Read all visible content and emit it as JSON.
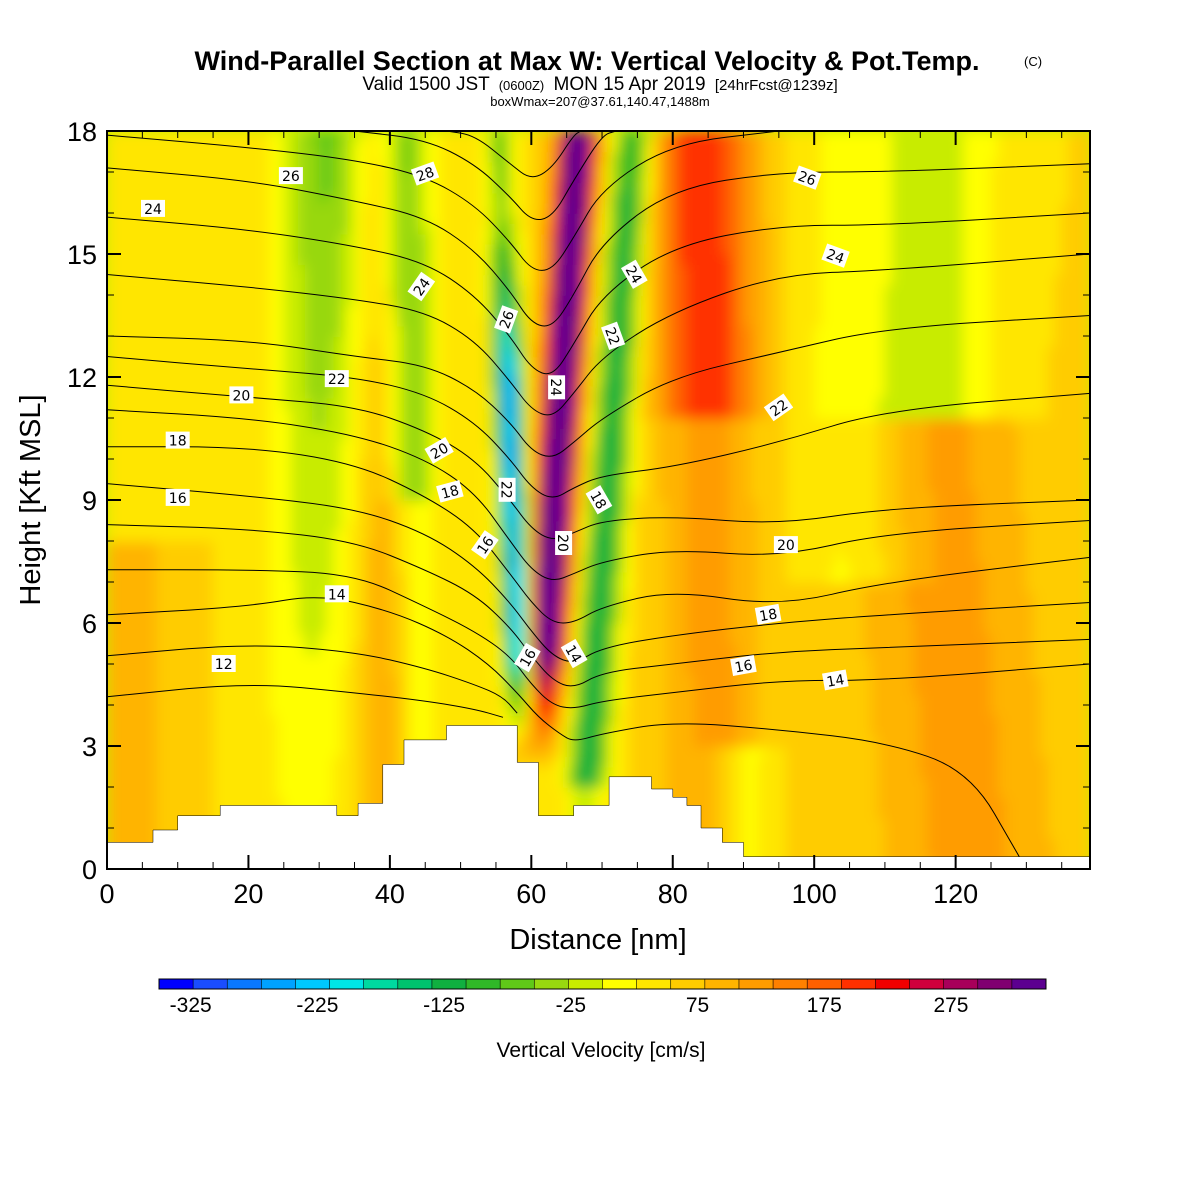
{
  "chart_data": {
    "type": "heatmap",
    "title": "Wind-Parallel Section at Max W: Vertical Velocity & Pot.Temp.",
    "title_mark": "(C)",
    "subtitle_a": "Valid 1500 JST",
    "subtitle_b": "(0600Z)",
    "subtitle_c": "MON 15 Apr 2019",
    "subtitle_d": "[24hrFcst@1239z]",
    "subtitle2": "boxWmax=207@37.61,140.47,1488m",
    "xlabel": "Distance [nm]",
    "ylabel": "Height [Kft MSL]",
    "xlim": [
      0,
      139
    ],
    "ylim": [
      0,
      18
    ],
    "x_ticks": [
      0,
      20,
      40,
      60,
      80,
      100,
      120
    ],
    "x_tick_labels": [
      "0",
      "20",
      "40",
      "60",
      "80",
      "100",
      "120"
    ],
    "y_ticks": [
      0,
      3,
      6,
      9,
      12,
      15,
      18
    ],
    "y_tick_labels": [
      "0",
      "3",
      "6",
      "9",
      "12",
      "15",
      "18"
    ],
    "colorbar": {
      "title": "Vertical Velocity [cm/s]",
      "min": -350,
      "max": 350,
      "step": 25,
      "tick_values": [
        -325,
        -225,
        -125,
        -25,
        75,
        175,
        275
      ],
      "tick_labels": [
        "-325",
        "-225",
        "-125",
        "-25",
        "75",
        "175",
        "275"
      ],
      "colors": [
        "#0000ff",
        "#1a4dff",
        "#0a78ff",
        "#00a2ff",
        "#00c8ff",
        "#00e6e6",
        "#00d9a0",
        "#00c36e",
        "#10b040",
        "#30b828",
        "#60c818",
        "#98d810",
        "#c8ec00",
        "#ffff00",
        "#ffe600",
        "#ffcc00",
        "#ffb400",
        "#ff9c00",
        "#ff8000",
        "#ff6000",
        "#ff3000",
        "#f00000",
        "#d0003c",
        "#a8005a",
        "#800070",
        "#5c0090"
      ]
    },
    "terrain": [
      [
        0,
        0.65
      ],
      [
        6.5,
        0.65
      ],
      [
        6.5,
        0.95
      ],
      [
        10,
        0.95
      ],
      [
        10,
        1.3
      ],
      [
        16,
        1.3
      ],
      [
        16,
        1.55
      ],
      [
        32.5,
        1.55
      ],
      [
        32.5,
        1.3
      ],
      [
        35.5,
        1.3
      ],
      [
        35.5,
        1.6
      ],
      [
        39,
        1.6
      ],
      [
        39,
        2.55
      ],
      [
        42,
        2.55
      ],
      [
        42,
        3.15
      ],
      [
        48,
        3.15
      ],
      [
        48,
        3.5
      ],
      [
        58,
        3.5
      ],
      [
        58,
        2.6
      ],
      [
        61,
        2.6
      ],
      [
        61,
        1.3
      ],
      [
        66,
        1.3
      ],
      [
        66,
        1.55
      ],
      [
        71,
        1.55
      ],
      [
        71,
        2.25
      ],
      [
        77,
        2.25
      ],
      [
        77,
        1.95
      ],
      [
        80,
        1.95
      ],
      [
        80,
        1.75
      ],
      [
        82,
        1.75
      ],
      [
        82,
        1.55
      ],
      [
        84,
        1.55
      ],
      [
        84,
        1
      ],
      [
        87,
        1
      ],
      [
        87,
        0.65
      ],
      [
        90,
        0.65
      ],
      [
        90,
        0.3
      ],
      [
        139,
        0.3
      ]
    ],
    "isentropes": [
      {
        "level": 12,
        "points": [
          [
            0,
            4.2
          ],
          [
            20,
            4.55
          ],
          [
            35,
            4.3
          ],
          [
            45,
            4.1
          ],
          [
            52,
            3.9
          ],
          [
            56,
            3.7
          ]
        ]
      },
      {
        "level": 13,
        "points": [
          [
            0,
            5.2
          ],
          [
            20,
            5.5
          ],
          [
            35,
            5.3
          ],
          [
            45,
            4.9
          ],
          [
            52,
            4.5
          ],
          [
            56,
            4.2
          ],
          [
            58,
            3.8
          ]
        ]
      },
      {
        "level": 14,
        "points": [
          [
            0,
            6.2
          ],
          [
            20,
            6.4
          ],
          [
            30,
            6.7
          ],
          [
            40,
            6.3
          ],
          [
            48,
            5.7
          ],
          [
            54,
            5.0
          ],
          [
            58,
            4.3
          ],
          [
            61,
            3.7
          ],
          [
            64,
            3.3
          ],
          [
            66,
            3.1
          ],
          [
            70,
            3.3
          ],
          [
            80,
            3.6
          ],
          [
            95,
            3.4
          ],
          [
            110,
            3.1
          ],
          [
            122,
            2.4
          ],
          [
            129,
            0.3
          ]
        ]
      },
      {
        "level": 15,
        "points": [
          [
            0,
            7.3
          ],
          [
            20,
            7.3
          ],
          [
            35,
            7.2
          ],
          [
            45,
            6.4
          ],
          [
            52,
            5.8
          ],
          [
            57,
            5.2
          ],
          [
            60,
            4.5
          ],
          [
            63,
            4.0
          ],
          [
            66,
            3.9
          ],
          [
            70,
            4.1
          ],
          [
            80,
            4.3
          ],
          [
            95,
            4.6
          ],
          [
            110,
            4.6
          ],
          [
            139,
            5.0
          ]
        ]
      },
      {
        "level": 16,
        "points": [
          [
            0,
            8.4
          ],
          [
            20,
            8.3
          ],
          [
            35,
            8.0
          ],
          [
            45,
            7.3
          ],
          [
            52,
            6.7
          ],
          [
            57,
            5.9
          ],
          [
            60,
            5.2
          ],
          [
            63,
            4.6
          ],
          [
            66,
            4.4
          ],
          [
            70,
            4.8
          ],
          [
            80,
            5.0
          ],
          [
            95,
            5.3
          ],
          [
            110,
            5.4
          ],
          [
            139,
            5.6
          ]
        ]
      },
      {
        "level": 17,
        "points": [
          [
            0,
            9.4
          ],
          [
            20,
            9.1
          ],
          [
            35,
            8.8
          ],
          [
            45,
            8.2
          ],
          [
            52,
            7.4
          ],
          [
            57,
            6.5
          ],
          [
            60,
            5.8
          ],
          [
            63,
            5.2
          ],
          [
            66,
            5.0
          ],
          [
            70,
            5.4
          ],
          [
            80,
            5.7
          ],
          [
            95,
            6.0
          ],
          [
            110,
            6.2
          ],
          [
            139,
            6.5
          ]
        ]
      },
      {
        "level": 18,
        "points": [
          [
            0,
            10.3
          ],
          [
            20,
            10.3
          ],
          [
            35,
            9.9
          ],
          [
            45,
            9.1
          ],
          [
            52,
            8.3
          ],
          [
            57,
            7.2
          ],
          [
            60,
            6.5
          ],
          [
            63,
            6.0
          ],
          [
            66,
            6.0
          ],
          [
            70,
            6.4
          ],
          [
            80,
            6.8
          ],
          [
            95,
            6.4
          ],
          [
            110,
            7.0
          ],
          [
            139,
            7.6
          ]
        ]
      },
      {
        "level": 19,
        "points": [
          [
            0,
            11.2
          ],
          [
            20,
            11.0
          ],
          [
            35,
            10.6
          ],
          [
            45,
            10.0
          ],
          [
            52,
            9.2
          ],
          [
            57,
            8.0
          ],
          [
            60,
            7.3
          ],
          [
            63,
            7.0
          ],
          [
            66,
            7.2
          ],
          [
            70,
            7.5
          ],
          [
            80,
            7.8
          ],
          [
            95,
            7.6
          ],
          [
            110,
            8.2
          ],
          [
            139,
            8.5
          ]
        ]
      },
      {
        "level": 20,
        "points": [
          [
            0,
            11.8
          ],
          [
            20,
            11.5
          ],
          [
            35,
            11.3
          ],
          [
            45,
            10.7
          ],
          [
            52,
            10.0
          ],
          [
            57,
            9.0
          ],
          [
            60,
            8.3
          ],
          [
            63,
            8.0
          ],
          [
            66,
            8.2
          ],
          [
            70,
            8.5
          ],
          [
            80,
            8.6
          ],
          [
            95,
            8.4
          ],
          [
            110,
            8.8
          ],
          [
            139,
            9.0
          ]
        ]
      },
      {
        "level": 21,
        "points": [
          [
            0,
            12.5
          ],
          [
            20,
            12.2
          ],
          [
            35,
            12.0
          ],
          [
            45,
            11.6
          ],
          [
            52,
            10.9
          ],
          [
            57,
            10.0
          ],
          [
            60,
            9.3
          ],
          [
            63,
            9.0
          ],
          [
            66,
            9.3
          ],
          [
            70,
            9.6
          ],
          [
            80,
            9.8
          ],
          [
            95,
            10.4
          ],
          [
            110,
            11.2
          ],
          [
            139,
            11.6
          ]
        ]
      },
      {
        "level": 22,
        "points": [
          [
            0,
            13.0
          ],
          [
            20,
            12.9
          ],
          [
            35,
            12.5
          ],
          [
            45,
            12.3
          ],
          [
            52,
            11.7
          ],
          [
            57,
            10.9
          ],
          [
            60,
            10.2
          ],
          [
            63,
            10.0
          ],
          [
            66,
            10.4
          ],
          [
            70,
            11.0
          ],
          [
            80,
            12.0
          ],
          [
            95,
            12.6
          ],
          [
            110,
            13.2
          ],
          [
            139,
            13.5
          ]
        ]
      },
      {
        "level": 23,
        "points": [
          [
            0,
            14.5
          ],
          [
            20,
            14.2
          ],
          [
            35,
            13.9
          ],
          [
            45,
            13.6
          ],
          [
            52,
            12.9
          ],
          [
            57,
            11.9
          ],
          [
            60,
            11.2
          ],
          [
            63,
            11.0
          ],
          [
            66,
            11.6
          ],
          [
            70,
            12.5
          ],
          [
            80,
            13.6
          ],
          [
            95,
            14.5
          ],
          [
            110,
            14.6
          ],
          [
            139,
            15.0
          ]
        ]
      },
      {
        "level": 24,
        "points": [
          [
            0,
            15.9
          ],
          [
            20,
            15.6
          ],
          [
            35,
            15.2
          ],
          [
            45,
            14.8
          ],
          [
            52,
            14.0
          ],
          [
            57,
            13.0
          ],
          [
            60,
            12.2
          ],
          [
            63,
            12.0
          ],
          [
            66,
            12.8
          ],
          [
            70,
            14.0
          ],
          [
            80,
            15.2
          ],
          [
            95,
            15.7
          ],
          [
            110,
            15.7
          ],
          [
            139,
            16.0
          ]
        ]
      },
      {
        "level": 25,
        "points": [
          [
            0,
            17.1
          ],
          [
            20,
            16.8
          ],
          [
            35,
            16.3
          ],
          [
            45,
            15.9
          ],
          [
            52,
            15.1
          ],
          [
            57,
            14.1
          ],
          [
            60,
            13.3
          ],
          [
            63,
            13.2
          ],
          [
            66,
            14.0
          ],
          [
            70,
            15.3
          ],
          [
            80,
            16.6
          ],
          [
            95,
            17.0
          ],
          [
            110,
            17.0
          ],
          [
            139,
            17.2
          ]
        ]
      },
      {
        "level": 26,
        "points": [
          [
            0,
            17.9
          ],
          [
            20,
            17.6
          ],
          [
            35,
            17.3
          ],
          [
            45,
            16.9
          ],
          [
            52,
            16.2
          ],
          [
            57,
            15.3
          ],
          [
            60,
            14.6
          ],
          [
            63,
            14.6
          ],
          [
            66,
            15.4
          ],
          [
            70,
            16.6
          ],
          [
            80,
            17.7
          ],
          [
            95,
            18.0
          ]
        ]
      },
      {
        "level": 27,
        "points": [
          [
            35,
            18.0
          ],
          [
            45,
            17.8
          ],
          [
            52,
            17.2
          ],
          [
            57,
            16.4
          ],
          [
            60,
            15.8
          ],
          [
            63,
            15.9
          ],
          [
            66,
            16.8
          ],
          [
            70,
            17.9
          ],
          [
            72,
            18.0
          ]
        ]
      },
      {
        "level": 28,
        "points": [
          [
            48,
            18.0
          ],
          [
            52,
            17.9
          ],
          [
            57,
            17.2
          ],
          [
            60,
            16.8
          ],
          [
            63,
            17.1
          ],
          [
            66,
            17.9
          ],
          [
            67,
            18.0
          ]
        ]
      }
    ],
    "contour_labels": [
      {
        "text": "12",
        "x": 16.5,
        "y": 5.0,
        "angle": 0
      },
      {
        "text": "14",
        "x": 32.5,
        "y": 6.7,
        "angle": 0
      },
      {
        "text": "16",
        "x": 10,
        "y": 9.05,
        "angle": 0
      },
      {
        "text": "18",
        "x": 10,
        "y": 10.45,
        "angle": 0
      },
      {
        "text": "20",
        "x": 19,
        "y": 11.55,
        "angle": 0
      },
      {
        "text": "22",
        "x": 32.5,
        "y": 11.95,
        "angle": 0
      },
      {
        "text": "24",
        "x": 6.5,
        "y": 16.1,
        "angle": 0
      },
      {
        "text": "26",
        "x": 26,
        "y": 16.9,
        "angle": 0
      },
      {
        "text": "28",
        "x": 45,
        "y": 16.95,
        "angle": -20
      },
      {
        "text": "24",
        "x": 44.5,
        "y": 14.2,
        "angle": -55
      },
      {
        "text": "26",
        "x": 56.5,
        "y": 13.4,
        "angle": -70
      },
      {
        "text": "24",
        "x": 63.5,
        "y": 11.75,
        "angle": 90
      },
      {
        "text": "20",
        "x": 47,
        "y": 10.2,
        "angle": -30
      },
      {
        "text": "18",
        "x": 48.5,
        "y": 9.2,
        "angle": -15
      },
      {
        "text": "22",
        "x": 56.5,
        "y": 9.25,
        "angle": 90
      },
      {
        "text": "16",
        "x": 53.5,
        "y": 7.9,
        "angle": -55
      },
      {
        "text": "16",
        "x": 59.5,
        "y": 5.15,
        "angle": -60
      },
      {
        "text": "20",
        "x": 64.5,
        "y": 7.95,
        "angle": 90
      },
      {
        "text": "18",
        "x": 69.5,
        "y": 9.0,
        "angle": 60
      },
      {
        "text": "14",
        "x": 66,
        "y": 5.25,
        "angle": 60
      },
      {
        "text": "22",
        "x": 71.5,
        "y": 13.0,
        "angle": 70
      },
      {
        "text": "24",
        "x": 74.5,
        "y": 14.5,
        "angle": 60
      },
      {
        "text": "26",
        "x": 99,
        "y": 16.85,
        "angle": 20
      },
      {
        "text": "24",
        "x": 103,
        "y": 14.95,
        "angle": 20
      },
      {
        "text": "22",
        "x": 95,
        "y": 11.25,
        "angle": -35
      },
      {
        "text": "20",
        "x": 96,
        "y": 7.9,
        "angle": 0
      },
      {
        "text": "18",
        "x": 93.5,
        "y": 6.2,
        "angle": -10
      },
      {
        "text": "16",
        "x": 90,
        "y": 4.95,
        "angle": -10
      },
      {
        "text": "14",
        "x": 103,
        "y": 4.6,
        "angle": -10
      }
    ]
  }
}
